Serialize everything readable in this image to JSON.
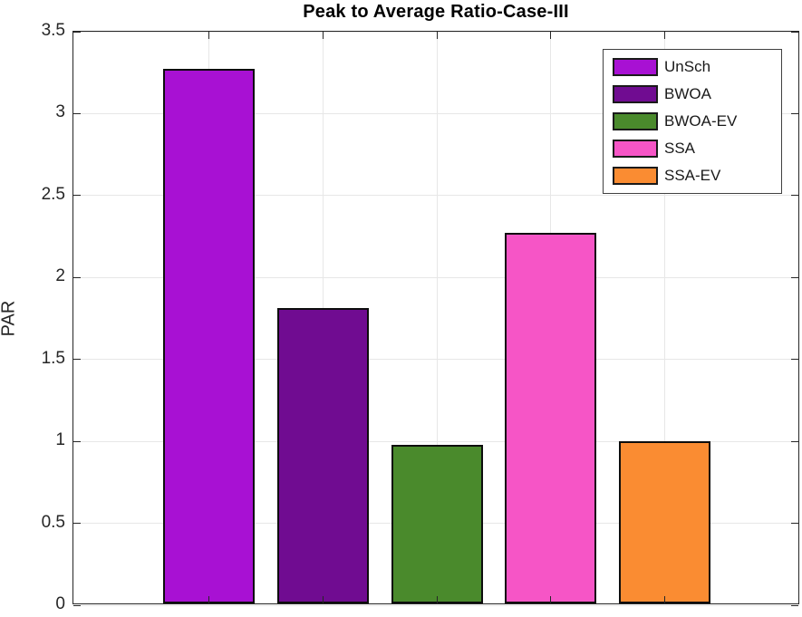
{
  "chart_data": {
    "type": "bar",
    "title": "Peak to Average Ratio-Case-III",
    "xlabel": "",
    "ylabel": "PAR",
    "ylim": [
      0,
      3.5
    ],
    "yticks": [
      0,
      0.5,
      1,
      1.5,
      2,
      2.5,
      3,
      3.5
    ],
    "xticklabels": [],
    "grid": true,
    "legend_position": "top-right",
    "categories": [
      "UnSch",
      "BWOA",
      "BWOA-EV",
      "SSA",
      "SSA-EV"
    ],
    "series": [
      {
        "name": "UnSch",
        "value": 3.26,
        "color": "#A811D3"
      },
      {
        "name": "BWOA",
        "value": 1.8,
        "color": "#700C91"
      },
      {
        "name": "BWOA-EV",
        "value": 0.97,
        "color": "#4A8A2C"
      },
      {
        "name": "SSA",
        "value": 2.26,
        "color": "#F655C6"
      },
      {
        "name": "SSA-EV",
        "value": 0.99,
        "color": "#FA8C32"
      }
    ],
    "bar_edge_color": "#0d0d0d"
  }
}
